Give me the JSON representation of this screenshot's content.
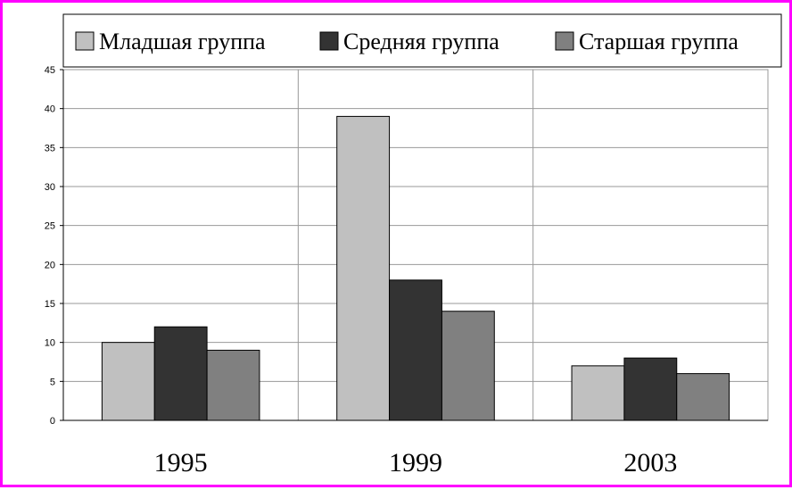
{
  "chart_data": {
    "type": "bar",
    "categories": [
      "1995",
      "1999",
      "2003"
    ],
    "series": [
      {
        "name": "Младшая группа",
        "values": [
          10,
          39,
          7
        ]
      },
      {
        "name": "Средняя группа",
        "values": [
          12,
          18,
          8
        ]
      },
      {
        "name": "Старшая группа",
        "values": [
          9,
          14,
          6
        ]
      }
    ],
    "ylim": [
      0,
      45
    ],
    "yticks": [
      0,
      5,
      10,
      15,
      20,
      25,
      30,
      35,
      40,
      45
    ],
    "grid": true,
    "legend_position": "top",
    "colors": {
      "series": [
        "#c0c0c0",
        "#333333",
        "#808080"
      ],
      "frame_border": "#ff00ff",
      "grid": "#999999"
    }
  }
}
